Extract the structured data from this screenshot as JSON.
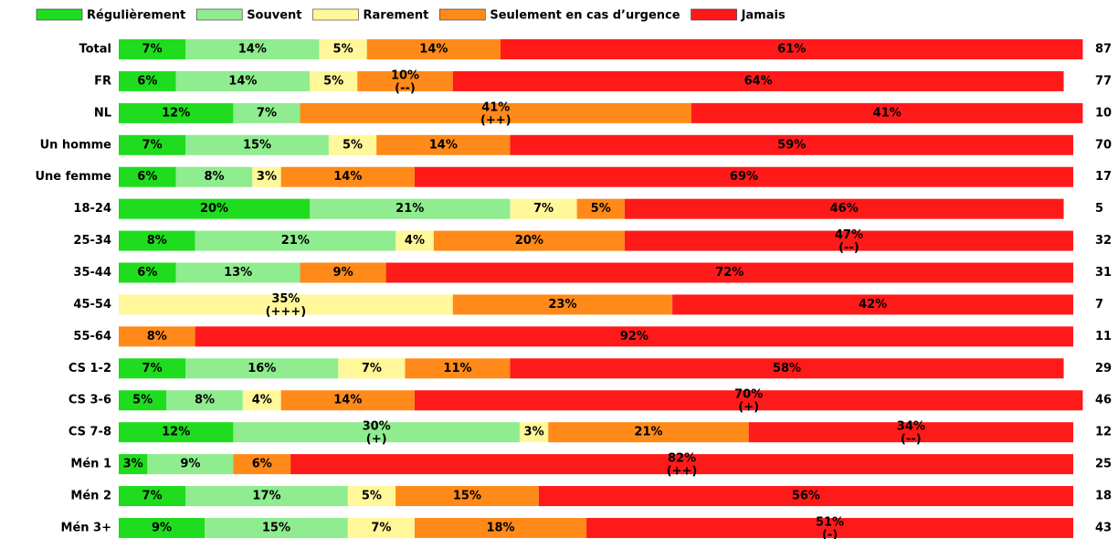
{
  "chart_data": {
    "type": "stacked-bar-horizontal",
    "categories": [
      "Total",
      "FR",
      "NL",
      "Un homme",
      "Une femme",
      "18-24",
      "25-34",
      "35-44",
      "45-54",
      "55-64",
      "CS 1-2",
      "CS 3-6",
      "CS 7-8",
      "Mén 1",
      "Mén 2",
      "Mén 3+"
    ],
    "counts": [
      87,
      77,
      10,
      70,
      17,
      5,
      32,
      31,
      7,
      11,
      29,
      46,
      12,
      25,
      18,
      43
    ],
    "xlim": [
      0,
      100
    ],
    "legend": "top",
    "series": [
      {
        "name": "Régulièrement",
        "color": "#1fdc1f",
        "values": [
          7,
          6,
          12,
          7,
          6,
          20,
          8,
          6,
          null,
          null,
          7,
          5,
          12,
          3,
          7,
          9
        ],
        "value_labels": [
          "7%",
          "6%",
          "12%",
          "7%",
          "6%",
          "20%",
          "8%",
          "6%",
          null,
          null,
          "7%",
          "5%",
          "12%",
          "3%",
          "7%",
          "9%"
        ],
        "notes": [
          null,
          null,
          null,
          null,
          null,
          null,
          null,
          null,
          null,
          null,
          null,
          null,
          null,
          null,
          null,
          null
        ]
      },
      {
        "name": "Souvent",
        "color": "#8fec8f",
        "values": [
          14,
          14,
          7,
          15,
          8,
          21,
          21,
          13,
          null,
          null,
          16,
          8,
          30,
          9,
          17,
          15
        ],
        "value_labels": [
          "14%",
          "14%",
          "7%",
          "15%",
          "8%",
          "21%",
          "21%",
          "13%",
          null,
          null,
          "16%",
          "8%",
          "30%",
          "9%",
          "17%",
          "15%"
        ],
        "notes": [
          null,
          null,
          null,
          null,
          null,
          null,
          null,
          null,
          null,
          null,
          null,
          null,
          "(+)",
          null,
          null,
          null
        ]
      },
      {
        "name": "Rarement",
        "color": "#fff79a",
        "values": [
          5,
          5,
          null,
          5,
          3,
          7,
          4,
          null,
          35,
          null,
          7,
          4,
          3,
          null,
          5,
          7
        ],
        "value_labels": [
          "5%",
          "5%",
          null,
          "5%",
          "3%",
          "7%",
          "4%",
          null,
          "35%",
          null,
          "7%",
          "4%",
          "3%",
          null,
          "5%",
          "7%"
        ],
        "notes": [
          null,
          null,
          null,
          null,
          null,
          null,
          null,
          null,
          "(+++)",
          null,
          null,
          null,
          null,
          null,
          null,
          null
        ]
      },
      {
        "name": "Seulement en cas d’urgence",
        "color": "#ff8a1a",
        "values": [
          14,
          10,
          41,
          14,
          14,
          5,
          20,
          9,
          23,
          8,
          11,
          14,
          21,
          6,
          15,
          18
        ],
        "value_labels": [
          "14%",
          "10%",
          "41%",
          "14%",
          "14%",
          "5%",
          "20%",
          "9%",
          "23%",
          "8%",
          "11%",
          "14%",
          "21%",
          "6%",
          "15%",
          "18%"
        ],
        "notes": [
          null,
          "(--)",
          "(++)",
          null,
          null,
          null,
          null,
          null,
          null,
          null,
          null,
          null,
          null,
          null,
          null,
          null
        ]
      },
      {
        "name": "Jamais",
        "color": "#ff1a1a",
        "values": [
          61,
          64,
          41,
          59,
          69,
          46,
          47,
          72,
          42,
          92,
          58,
          70,
          34,
          82,
          56,
          51
        ],
        "value_labels": [
          "61%",
          "64%",
          "41%",
          "59%",
          "69%",
          "46%",
          "47%",
          "72%",
          "42%",
          "92%",
          "58%",
          "70%",
          "34%",
          "82%",
          "56%",
          "51%"
        ],
        "notes": [
          null,
          null,
          null,
          null,
          null,
          null,
          "(--)",
          null,
          null,
          null,
          null,
          "(+)",
          "(--)",
          "(++)",
          null,
          "(-)"
        ]
      }
    ]
  }
}
